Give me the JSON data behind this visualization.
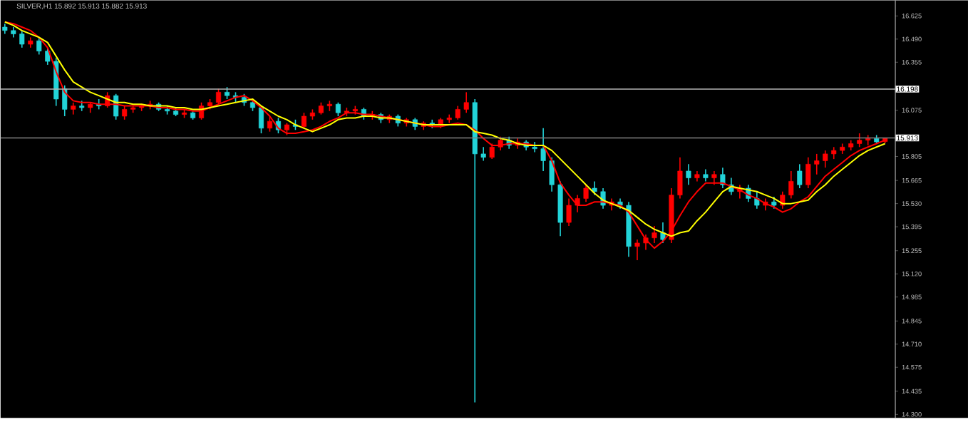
{
  "chart_data": {
    "type": "candlestick",
    "title": "SILVER,H1  15.892 15.913 15.882 15.913",
    "categories": [
      null,
      null,
      null,
      null,
      null,
      null,
      null,
      null,
      null,
      null,
      null,
      null,
      null,
      null,
      null,
      null,
      null,
      null,
      null,
      null,
      null,
      null,
      null,
      null,
      null,
      null,
      null,
      null,
      null,
      null,
      null,
      null,
      null,
      null,
      null,
      null,
      null,
      null,
      null,
      null,
      null,
      null,
      null,
      null,
      null,
      null,
      null,
      null,
      null,
      null,
      null,
      null,
      null,
      null,
      null,
      null,
      null,
      null,
      null,
      null,
      null,
      null,
      null,
      null,
      null,
      null,
      null,
      null,
      null,
      null,
      null,
      null,
      null,
      null,
      null,
      null,
      null,
      null,
      null,
      null,
      null,
      null,
      null,
      null,
      null,
      null,
      null,
      null,
      null,
      null,
      null,
      null,
      null,
      null,
      null,
      null,
      null,
      null,
      null,
      null,
      null,
      null,
      null,
      null
    ],
    "ohlc": [
      [
        16.56,
        16.58,
        16.52,
        16.54
      ],
      [
        16.54,
        16.56,
        16.5,
        16.52
      ],
      [
        16.52,
        16.54,
        16.44,
        16.46
      ],
      [
        16.46,
        16.5,
        16.44,
        16.48
      ],
      [
        16.48,
        16.5,
        16.4,
        16.42
      ],
      [
        16.42,
        16.44,
        16.34,
        16.36
      ],
      [
        16.36,
        16.38,
        16.1,
        16.14
      ],
      [
        16.2,
        16.22,
        16.04,
        16.08
      ],
      [
        16.08,
        16.12,
        16.05,
        16.1
      ],
      [
        16.1,
        16.13,
        16.07,
        16.09
      ],
      [
        16.09,
        16.12,
        16.06,
        16.11
      ],
      [
        16.11,
        16.14,
        16.08,
        16.1
      ],
      [
        16.1,
        16.18,
        16.09,
        16.16
      ],
      [
        16.16,
        16.17,
        16.02,
        16.04
      ],
      [
        16.04,
        16.1,
        16.02,
        16.08
      ],
      [
        16.08,
        16.1,
        16.06,
        16.09
      ],
      [
        16.09,
        16.11,
        16.07,
        16.1
      ],
      [
        16.1,
        16.13,
        16.08,
        16.11
      ],
      [
        16.11,
        16.12,
        16.07,
        16.08
      ],
      [
        16.08,
        16.1,
        16.05,
        16.07
      ],
      [
        16.07,
        16.09,
        16.04,
        16.05
      ],
      [
        16.05,
        16.08,
        16.03,
        16.06
      ],
      [
        16.06,
        16.07,
        16.02,
        16.03
      ],
      [
        16.03,
        16.12,
        16.02,
        16.1
      ],
      [
        16.1,
        16.14,
        16.08,
        16.12
      ],
      [
        16.12,
        16.2,
        16.11,
        16.18
      ],
      [
        16.18,
        16.21,
        16.14,
        16.16
      ],
      [
        16.16,
        16.18,
        16.12,
        16.15
      ],
      [
        16.15,
        16.17,
        16.1,
        16.12
      ],
      [
        16.12,
        16.14,
        16.07,
        16.09
      ],
      [
        16.09,
        16.1,
        15.94,
        15.97
      ],
      [
        15.97,
        16.04,
        15.95,
        16.01
      ],
      [
        16.01,
        16.03,
        15.94,
        15.96
      ],
      [
        15.96,
        16.0,
        15.93,
        15.99
      ],
      [
        15.99,
        16.02,
        15.96,
        15.98
      ],
      [
        15.98,
        16.06,
        15.97,
        16.04
      ],
      [
        16.04,
        16.08,
        16.02,
        16.06
      ],
      [
        16.06,
        16.12,
        16.05,
        16.1
      ],
      [
        16.1,
        16.13,
        16.07,
        16.11
      ],
      [
        16.11,
        16.12,
        16.04,
        16.06
      ],
      [
        16.06,
        16.09,
        16.04,
        16.07
      ],
      [
        16.07,
        16.1,
        16.05,
        16.08
      ],
      [
        16.08,
        16.09,
        16.02,
        16.04
      ],
      [
        16.04,
        16.07,
        16.02,
        16.05
      ],
      [
        16.05,
        16.06,
        16.0,
        16.02
      ],
      [
        16.02,
        16.05,
        16.0,
        16.04
      ],
      [
        16.04,
        16.05,
        15.98,
        16.0
      ],
      [
        16.0,
        16.03,
        15.98,
        16.02
      ],
      [
        16.02,
        16.03,
        15.96,
        15.98
      ],
      [
        15.98,
        16.01,
        15.96,
        16.0
      ],
      [
        16.0,
        16.02,
        15.97,
        15.99
      ],
      [
        15.99,
        16.03,
        15.97,
        16.02
      ],
      [
        16.02,
        16.05,
        16.0,
        16.03
      ],
      [
        16.03,
        16.1,
        16.02,
        16.08
      ],
      [
        16.08,
        16.18,
        16.06,
        16.12
      ],
      [
        16.12,
        16.14,
        14.37,
        15.82
      ],
      [
        15.82,
        15.86,
        15.78,
        15.8
      ],
      [
        15.8,
        15.88,
        15.79,
        15.86
      ],
      [
        15.86,
        15.92,
        15.84,
        15.9
      ],
      [
        15.9,
        15.92,
        15.85,
        15.87
      ],
      [
        15.87,
        15.91,
        15.85,
        15.89
      ],
      [
        15.89,
        15.9,
        15.84,
        15.86
      ],
      [
        15.86,
        15.89,
        15.83,
        15.85
      ],
      [
        15.85,
        15.97,
        15.72,
        15.78
      ],
      [
        15.78,
        15.8,
        15.6,
        15.64
      ],
      [
        15.64,
        15.66,
        15.34,
        15.42
      ],
      [
        15.42,
        15.56,
        15.4,
        15.52
      ],
      [
        15.52,
        15.58,
        15.48,
        15.56
      ],
      [
        15.56,
        15.64,
        15.54,
        15.62
      ],
      [
        15.62,
        15.66,
        15.58,
        15.6
      ],
      [
        15.6,
        15.62,
        15.5,
        15.52
      ],
      [
        15.52,
        15.56,
        15.49,
        15.54
      ],
      [
        15.54,
        15.56,
        15.5,
        15.52
      ],
      [
        15.52,
        15.54,
        15.22,
        15.28
      ],
      [
        15.28,
        15.32,
        15.2,
        15.3
      ],
      [
        15.3,
        15.35,
        15.26,
        15.33
      ],
      [
        15.33,
        15.4,
        15.3,
        15.36
      ],
      [
        15.36,
        15.42,
        15.3,
        15.32
      ],
      [
        15.32,
        15.62,
        15.3,
        15.58
      ],
      [
        15.58,
        15.8,
        15.56,
        15.72
      ],
      [
        15.72,
        15.76,
        15.64,
        15.68
      ],
      [
        15.68,
        15.72,
        15.66,
        15.7
      ],
      [
        15.7,
        15.73,
        15.66,
        15.68
      ],
      [
        15.68,
        15.72,
        15.64,
        15.7
      ],
      [
        15.7,
        15.74,
        15.62,
        15.64
      ],
      [
        15.64,
        15.68,
        15.58,
        15.6
      ],
      [
        15.6,
        15.64,
        15.56,
        15.62
      ],
      [
        15.62,
        15.64,
        15.54,
        15.56
      ],
      [
        15.56,
        15.6,
        15.5,
        15.52
      ],
      [
        15.52,
        15.56,
        15.49,
        15.54
      ],
      [
        15.54,
        15.57,
        15.5,
        15.52
      ],
      [
        15.52,
        15.6,
        15.5,
        15.58
      ],
      [
        15.58,
        15.72,
        15.56,
        15.66
      ],
      [
        15.72,
        15.76,
        15.62,
        15.64
      ],
      [
        15.64,
        15.8,
        15.62,
        15.76
      ],
      [
        15.76,
        15.82,
        15.7,
        15.78
      ],
      [
        15.78,
        15.84,
        15.74,
        15.82
      ],
      [
        15.82,
        15.86,
        15.79,
        15.84
      ],
      [
        15.84,
        15.88,
        15.82,
        15.86
      ],
      [
        15.86,
        15.9,
        15.84,
        15.88
      ],
      [
        15.88,
        15.94,
        15.86,
        15.9
      ],
      [
        15.9,
        15.93,
        15.87,
        15.91
      ],
      [
        15.91,
        15.93,
        15.88,
        15.89
      ],
      [
        15.892,
        15.913,
        15.882,
        15.913
      ]
    ],
    "colors": [
      "#22d3d8",
      "#22d3d8",
      "#22d3d8",
      "#ff0000",
      "#22d3d8",
      "#22d3d8",
      "#22d3d8",
      "#22d3d8",
      "#ff0000",
      "#22d3d8",
      "#ff0000",
      "#22d3d8",
      "#ff0000",
      "#22d3d8",
      "#ff0000",
      "#ff0000",
      "#ff0000",
      "#ff0000",
      "#22d3d8",
      "#22d3d8",
      "#22d3d8",
      "#ff0000",
      "#22d3d8",
      "#ff0000",
      "#ff0000",
      "#ff0000",
      "#22d3d8",
      "#22d3d8",
      "#22d3d8",
      "#22d3d8",
      "#22d3d8",
      "#ff0000",
      "#22d3d8",
      "#ff0000",
      "#22d3d8",
      "#ff0000",
      "#ff0000",
      "#ff0000",
      "#ff0000",
      "#22d3d8",
      "#ff0000",
      "#ff0000",
      "#22d3d8",
      "#ff0000",
      "#22d3d8",
      "#ff0000",
      "#22d3d8",
      "#ff0000",
      "#22d3d8",
      "#ff0000",
      "#22d3d8",
      "#ff0000",
      "#ff0000",
      "#ff0000",
      "#ff0000",
      "#22d3d8",
      "#22d3d8",
      "#ff0000",
      "#ff0000",
      "#22d3d8",
      "#ff0000",
      "#22d3d8",
      "#22d3d8",
      "#22d3d8",
      "#22d3d8",
      "#22d3d8",
      "#ff0000",
      "#ff0000",
      "#ff0000",
      "#22d3d8",
      "#22d3d8",
      "#ff0000",
      "#22d3d8",
      "#22d3d8",
      "#ff0000",
      "#ff0000",
      "#ff0000",
      "#22d3d8",
      "#ff0000",
      "#ff0000",
      "#22d3d8",
      "#ff0000",
      "#22d3d8",
      "#ff0000",
      "#22d3d8",
      "#22d3d8",
      "#ff0000",
      "#22d3d8",
      "#22d3d8",
      "#ff0000",
      "#22d3d8",
      "#ff0000",
      "#ff0000",
      "#22d3d8",
      "#ff0000",
      "#ff0000",
      "#ff0000",
      "#ff0000",
      "#ff0000",
      "#ff0000",
      "#ff0000",
      "#ff0000",
      "#22d3d8",
      "#ff0000"
    ],
    "series": [
      {
        "type": "line",
        "color": "#ff0000",
        "values": [
          16.59,
          16.58,
          16.56,
          16.54,
          16.5,
          16.44,
          16.3,
          16.18,
          16.13,
          16.12,
          16.12,
          16.11,
          16.11,
          16.11,
          16.1,
          16.1,
          16.1,
          16.1,
          16.09,
          16.09,
          16.08,
          16.08,
          16.07,
          16.07,
          16.09,
          16.11,
          16.13,
          16.15,
          16.16,
          16.13,
          16.09,
          16.04,
          15.97,
          15.94,
          15.94,
          15.95,
          15.96,
          15.98,
          16.01,
          16.03,
          16.06,
          16.06,
          16.05,
          16.05,
          16.04,
          16.03,
          16.02,
          16.01,
          16.0,
          15.99,
          15.98,
          15.98,
          15.99,
          16.0,
          15.99,
          15.96,
          15.91,
          15.87,
          15.87,
          15.88,
          15.88,
          15.88,
          15.87,
          15.87,
          15.78,
          15.65,
          15.58,
          15.52,
          15.52,
          15.54,
          15.54,
          15.53,
          15.52,
          15.48,
          15.4,
          15.32,
          15.27,
          15.31,
          15.37,
          15.46,
          15.54,
          15.6,
          15.65,
          15.65,
          15.65,
          15.63,
          15.61,
          15.58,
          15.56,
          15.53,
          15.51,
          15.48,
          15.5,
          15.54,
          15.57,
          15.63,
          15.69,
          15.73,
          15.77,
          15.81,
          15.84,
          15.86,
          15.88,
          15.9
        ]
      },
      {
        "type": "line",
        "color": "#ffff00",
        "values": [
          16.59,
          16.57,
          16.54,
          16.52,
          16.5,
          16.47,
          16.39,
          16.31,
          16.24,
          16.21,
          16.18,
          16.16,
          16.14,
          16.12,
          16.12,
          16.11,
          16.11,
          16.1,
          16.1,
          16.1,
          16.09,
          16.09,
          16.08,
          16.08,
          16.09,
          16.1,
          16.11,
          16.12,
          16.13,
          16.14,
          16.1,
          16.07,
          16.04,
          16.02,
          15.99,
          15.97,
          15.95,
          15.97,
          15.99,
          16.02,
          16.03,
          16.03,
          16.04,
          16.04,
          16.03,
          16.03,
          16.02,
          16.01,
          16.0,
          15.99,
          15.99,
          15.99,
          15.99,
          15.99,
          15.99,
          15.95,
          15.94,
          15.93,
          15.91,
          15.9,
          15.88,
          15.87,
          15.87,
          15.87,
          15.84,
          15.79,
          15.74,
          15.69,
          15.64,
          15.59,
          15.55,
          15.53,
          15.51,
          15.49,
          15.45,
          15.41,
          15.38,
          15.36,
          15.34,
          15.36,
          15.37,
          15.43,
          15.48,
          15.54,
          15.6,
          15.63,
          15.62,
          15.61,
          15.6,
          15.58,
          15.56,
          15.53,
          15.53,
          15.54,
          15.55,
          15.6,
          15.64,
          15.69,
          15.73,
          15.77,
          15.81,
          15.84,
          15.86,
          15.88
        ]
      }
    ],
    "ylim": [
      14.28,
      16.716
    ],
    "yticks": [
      {
        "value": 16.625,
        "label": "16.625"
      },
      {
        "value": 16.49,
        "label": "16.490"
      },
      {
        "value": 16.355,
        "label": "16.355"
      },
      {
        "value": 16.075,
        "label": "16.075"
      },
      {
        "value": 15.805,
        "label": "15.805"
      },
      {
        "value": 15.665,
        "label": "15.665"
      },
      {
        "value": 15.53,
        "label": "15.530"
      },
      {
        "value": 15.395,
        "label": "15.395"
      },
      {
        "value": 15.255,
        "label": "15.255"
      },
      {
        "value": 15.12,
        "label": "15.120"
      },
      {
        "value": 14.985,
        "label": "14.985"
      },
      {
        "value": 14.845,
        "label": "14.845"
      },
      {
        "value": 14.71,
        "label": "14.710"
      },
      {
        "value": 14.575,
        "label": "14.575"
      },
      {
        "value": 14.435,
        "label": "14.435"
      },
      {
        "value": 14.3,
        "label": "14.300"
      }
    ],
    "ref_lines": [
      {
        "axis": "y",
        "value": 16.198,
        "label": "16.198",
        "color": "#b4b4b4"
      },
      {
        "axis": "y",
        "value": 15.913,
        "label": "15.913",
        "color": "#808080"
      }
    ]
  }
}
